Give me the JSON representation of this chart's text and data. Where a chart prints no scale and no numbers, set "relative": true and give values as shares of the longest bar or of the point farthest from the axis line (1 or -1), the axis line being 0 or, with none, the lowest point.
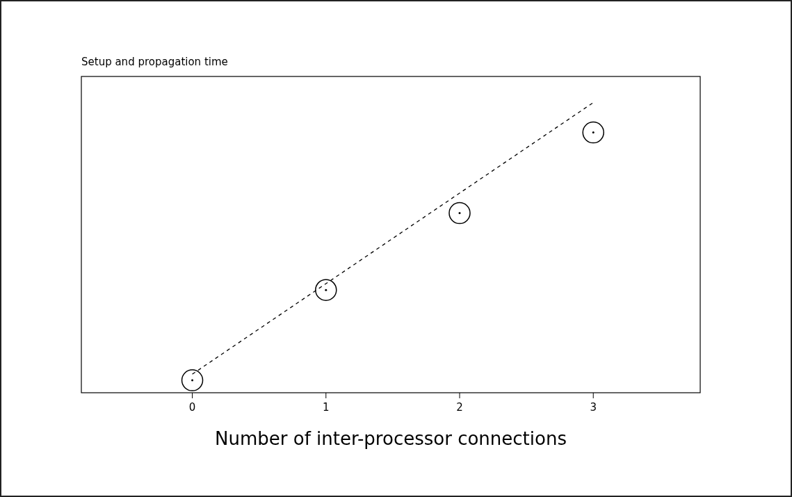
{
  "chart_data": {
    "type": "scatter",
    "ylabel": "Setup and propagation time",
    "xlabel": "Number of inter-processor connections",
    "relative": true,
    "xlim": [
      -0.83,
      3.8
    ],
    "xticks": [
      0,
      1,
      2,
      3
    ],
    "grid": false,
    "series": [
      {
        "color": "#000000",
        "marker": "circle",
        "x": [
          0,
          1,
          2,
          3
        ],
        "values": [
          0.043,
          0.354,
          0.619,
          0.897
        ]
      },
      {
        "type": "line",
        "color": "#000000",
        "line_style": "dashed",
        "marker": "none",
        "x": [
          0,
          3
        ],
        "values": [
          0.064,
          1
        ]
      }
    ]
  }
}
